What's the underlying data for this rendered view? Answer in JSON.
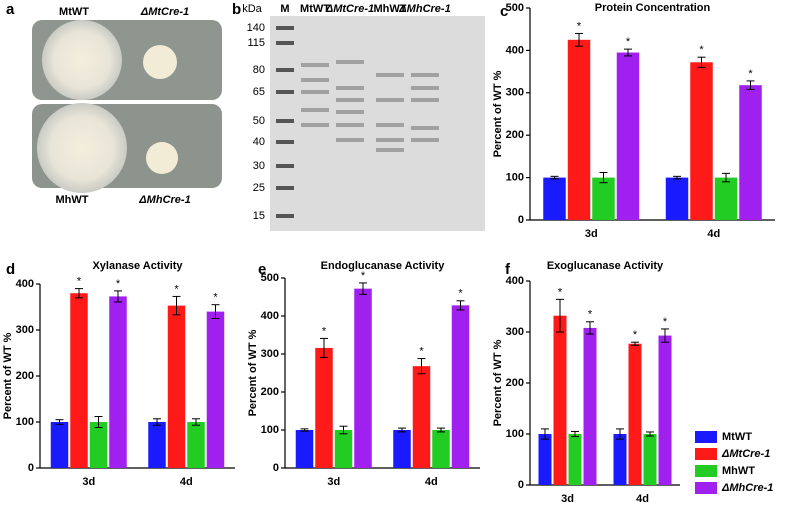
{
  "photo": {
    "letter": "a",
    "labels": [
      "MtWT",
      "ΔMtCre-1",
      "MhWT",
      "ΔMhCre-1"
    ]
  },
  "gel": {
    "letter": "b",
    "unit": "kDa",
    "lanes": [
      "M",
      "MtWT",
      "ΔMtCre-1",
      "MhWT",
      "ΔMhCre-1"
    ],
    "ladder": [
      140,
      115,
      80,
      65,
      50,
      40,
      30,
      25,
      15
    ]
  },
  "chart_data": [
    {
      "type": "bar",
      "letter": "c",
      "title": "Protein Concentration",
      "y_label": "Percent of WT %",
      "categories": [
        "3d",
        "4d"
      ],
      "ylim": [
        0,
        500
      ],
      "yticks": [
        0,
        100,
        200,
        300,
        400,
        500
      ],
      "series": [
        {
          "name": "MtWT",
          "color": "#1a1aff",
          "values": [
            100,
            100
          ],
          "errors": [
            3,
            3
          ]
        },
        {
          "name": "ΔMtCre-1",
          "color": "#ff1a1a",
          "values": [
            425,
            372
          ],
          "errors": [
            15,
            12
          ],
          "significance": [
            "*",
            "*"
          ]
        },
        {
          "name": "MhWT",
          "color": "#22cc22",
          "values": [
            100,
            100
          ],
          "errors": [
            12,
            10
          ]
        },
        {
          "name": "ΔMhCre-1",
          "color": "#a020f0",
          "values": [
            395,
            318
          ],
          "errors": [
            8,
            10
          ],
          "significance": [
            "*",
            "*"
          ]
        }
      ]
    },
    {
      "type": "bar",
      "letter": "d",
      "title": "Xylanase Activity",
      "y_label": "Percent of WT %",
      "categories": [
        "3d",
        "4d"
      ],
      "ylim": [
        0,
        400
      ],
      "yticks": [
        0,
        100,
        200,
        300,
        400
      ],
      "series": [
        {
          "name": "MtWT",
          "color": "#1a1aff",
          "values": [
            100,
            100
          ],
          "errors": [
            5,
            7
          ]
        },
        {
          "name": "ΔMtCre-1",
          "color": "#ff1a1a",
          "values": [
            380,
            353
          ],
          "errors": [
            10,
            20
          ],
          "significance": [
            "*",
            "*"
          ]
        },
        {
          "name": "MhWT",
          "color": "#22cc22",
          "values": [
            100,
            100
          ],
          "errors": [
            12,
            7
          ]
        },
        {
          "name": "ΔMhCre-1",
          "color": "#a020f0",
          "values": [
            373,
            340
          ],
          "errors": [
            12,
            15
          ],
          "significance": [
            "*",
            "*"
          ]
        }
      ]
    },
    {
      "type": "bar",
      "letter": "e",
      "title": "Endoglucanase Activity",
      "y_label": "Percent of WT %",
      "categories": [
        "3d",
        "4d"
      ],
      "ylim": [
        0,
        500
      ],
      "yticks": [
        0,
        100,
        200,
        300,
        400,
        500
      ],
      "series": [
        {
          "name": "MtWT",
          "color": "#1a1aff",
          "values": [
            100,
            100
          ],
          "errors": [
            3,
            5
          ]
        },
        {
          "name": "ΔMtCre-1",
          "color": "#ff1a1a",
          "values": [
            316,
            268
          ],
          "errors": [
            25,
            20
          ],
          "significance": [
            "*",
            "*"
          ]
        },
        {
          "name": "MhWT",
          "color": "#22cc22",
          "values": [
            100,
            100
          ],
          "errors": [
            10,
            5
          ]
        },
        {
          "name": "ΔMhCre-1",
          "color": "#a020f0",
          "values": [
            472,
            428
          ],
          "errors": [
            15,
            12
          ],
          "significance": [
            "*",
            "*"
          ]
        }
      ]
    },
    {
      "type": "bar",
      "letter": "f",
      "title": "Exoglucanase Activity",
      "y_label": "Percent of WT %",
      "categories": [
        "3d",
        "4d"
      ],
      "ylim": [
        0,
        400
      ],
      "yticks": [
        0,
        100,
        200,
        300,
        400
      ],
      "series": [
        {
          "name": "MtWT",
          "color": "#1a1aff",
          "values": [
            100,
            100
          ],
          "errors": [
            10,
            10
          ]
        },
        {
          "name": "ΔMtCre-1",
          "color": "#ff1a1a",
          "values": [
            332,
            277
          ],
          "errors": [
            32,
            3
          ],
          "significance": [
            "*",
            "*"
          ]
        },
        {
          "name": "MhWT",
          "color": "#22cc22",
          "values": [
            100,
            100
          ],
          "errors": [
            5,
            4
          ]
        },
        {
          "name": "ΔMhCre-1",
          "color": "#a020f0",
          "values": [
            308,
            293
          ],
          "errors": [
            12,
            13
          ],
          "significance": [
            "*",
            "*"
          ]
        }
      ]
    }
  ]
}
